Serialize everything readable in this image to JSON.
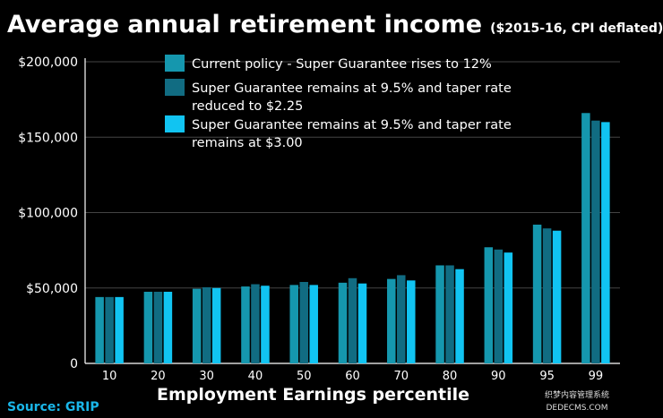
{
  "chart_data": {
    "type": "bar",
    "title": "Average annual retirement income",
    "subtitle": "($2015-16, CPI deflated)",
    "xlabel": "Employment Earnings percentile",
    "ylabel": "",
    "ylim": [
      0,
      200000
    ],
    "yticks": [
      0,
      50000,
      100000,
      150000,
      200000
    ],
    "ytick_labels": [
      "0",
      "$50,000",
      "$100,000",
      "$150,000",
      "$200,000"
    ],
    "grid": true,
    "legend_position": "top",
    "categories": [
      "10",
      "20",
      "30",
      "40",
      "50",
      "60",
      "70",
      "80",
      "90",
      "95",
      "99"
    ],
    "series": [
      {
        "name": "Current policy - Super Guarantee rises to 12%",
        "color": "#1597AE",
        "values": [
          44000,
          47500,
          49500,
          51000,
          52000,
          53500,
          56000,
          65000,
          77000,
          92000,
          166000
        ]
      },
      {
        "name": "Super Guarantee remains at 9.5% and taper rate reduced to $2.25",
        "color": "#116C82",
        "values": [
          44000,
          47500,
          50500,
          52500,
          54000,
          56500,
          58500,
          65000,
          75500,
          89500,
          161000
        ]
      },
      {
        "name": "Super Guarantee remains at 9.5% and taper rate remains at $3.00",
        "color": "#11C4F2",
        "values": [
          44000,
          47500,
          50000,
          51500,
          52000,
          53000,
          55000,
          62500,
          73500,
          88000,
          160000
        ]
      }
    ],
    "source": "Source: GRIP"
  },
  "legend_lines": [
    [
      "Current policy - Super Guarantee rises to 12%"
    ],
    [
      "Super Guarantee remains at 9.5% and taper rate",
      "reduced to $2.25"
    ],
    [
      "Super Guarantee remains at 9.5% and taper rate",
      "remains at $3.00"
    ]
  ],
  "watermark": "织梦内容管理系统 DEDECMS.COM"
}
